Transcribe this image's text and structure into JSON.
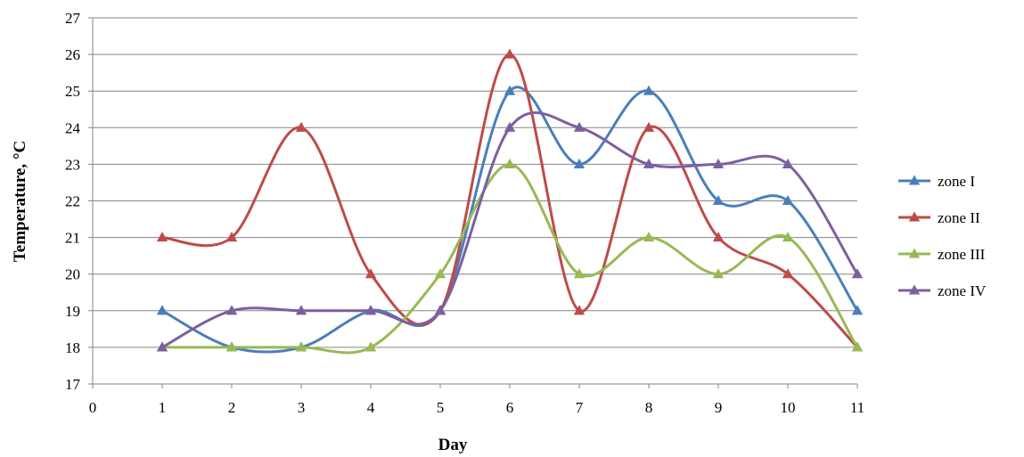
{
  "chart_data": {
    "type": "line",
    "title": "",
    "xlabel": "Day",
    "ylabel": "Temperature, °C",
    "xlim": [
      0,
      11
    ],
    "ylim": [
      17,
      27
    ],
    "x_ticks": [
      0,
      1,
      2,
      3,
      4,
      5,
      6,
      7,
      8,
      9,
      10,
      11
    ],
    "y_ticks": [
      17,
      18,
      19,
      20,
      21,
      22,
      23,
      24,
      25,
      26,
      27
    ],
    "grid": "horizontal",
    "legend_position": "right",
    "smooth": true,
    "x": [
      1,
      2,
      3,
      4,
      5,
      6,
      7,
      8,
      9,
      10,
      11
    ],
    "series": [
      {
        "name": "zone I",
        "color": "#4a7ebb",
        "values": [
          19,
          18,
          18,
          19,
          19,
          25,
          23,
          25,
          22,
          22,
          19
        ]
      },
      {
        "name": "zone II",
        "color": "#be4b48",
        "values": [
          21,
          21,
          24,
          20,
          19,
          26,
          19,
          24,
          21,
          20,
          18
        ]
      },
      {
        "name": "zone III",
        "color": "#98b954",
        "values": [
          18,
          18,
          18,
          18,
          20,
          23,
          20,
          21,
          20,
          21,
          18
        ]
      },
      {
        "name": "zone IV",
        "color": "#7d5fa0",
        "values": [
          18,
          19,
          19,
          19,
          19,
          24,
          24,
          23,
          23,
          23,
          20
        ]
      }
    ]
  }
}
